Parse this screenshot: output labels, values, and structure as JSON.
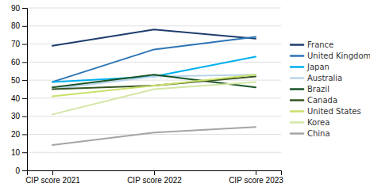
{
  "chart_data": {
    "type": "line",
    "categories": [
      "CIP score 2021",
      "CIP score 2022",
      "CIP score 2023"
    ],
    "series": [
      {
        "name": "France",
        "color": "#1f3e6e",
        "values": [
          69,
          78,
          73
        ]
      },
      {
        "name": "United Kingdom",
        "color": "#2e75b6",
        "values": [
          49,
          67,
          74
        ]
      },
      {
        "name": "Japan",
        "color": "#00b0f0",
        "values": [
          49,
          52,
          63
        ]
      },
      {
        "name": "Australia",
        "color": "#b8d4ea",
        "values": [
          45,
          52,
          53
        ]
      },
      {
        "name": "Brazil",
        "color": "#1a5427",
        "values": [
          46,
          53,
          46
        ]
      },
      {
        "name": "Canada",
        "color": "#375623",
        "values": [
          45,
          47,
          52
        ]
      },
      {
        "name": "United States",
        "color": "#c9e06a",
        "values": [
          41,
          47,
          53
        ]
      },
      {
        "name": "Korea",
        "color": "#d4e6a5",
        "values": [
          31,
          45,
          49
        ]
      },
      {
        "name": "China",
        "color": "#a5a5a5",
        "values": [
          14,
          21,
          24
        ]
      }
    ],
    "ylim": [
      0,
      90
    ],
    "yticks": [
      0,
      10,
      20,
      30,
      40,
      50,
      60,
      70,
      80,
      90
    ],
    "grid": true,
    "legend": "right"
  }
}
